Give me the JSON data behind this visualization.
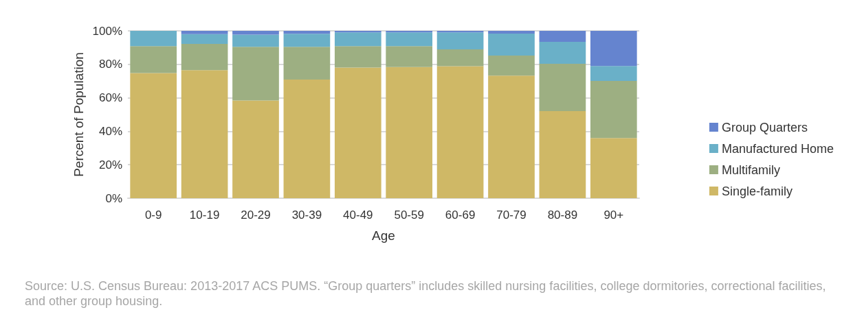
{
  "chart_data": {
    "type": "bar",
    "stacked": true,
    "xlabel": "Age",
    "ylabel": "Percent of Population",
    "categories": [
      "0-9",
      "10-19",
      "20-29",
      "30-39",
      "40-49",
      "50-59",
      "60-69",
      "70-79",
      "80-89",
      "90+"
    ],
    "series": [
      {
        "name": "Single-family",
        "color": "#cfb866",
        "values": [
          74.8,
          76.5,
          58.4,
          70.9,
          78.1,
          78.4,
          78.9,
          73.3,
          52.1,
          36.0
        ]
      },
      {
        "name": "Multifamily",
        "color": "#9daf82",
        "values": [
          16.1,
          15.7,
          32.1,
          19.6,
          12.8,
          12.5,
          10.0,
          11.9,
          28.2,
          34.1
        ]
      },
      {
        "name": "Manufactured Home",
        "color": "#6ab0c8",
        "values": [
          9.1,
          5.9,
          7.2,
          7.8,
          8.2,
          8.2,
          10.2,
          13.2,
          13.1,
          8.9
        ]
      },
      {
        "name": "Group Quarters",
        "color": "#6584cf",
        "values": [
          0,
          1.9,
          2.3,
          1.7,
          0.9,
          0.9,
          0.9,
          1.6,
          6.6,
          21.0
        ]
      }
    ],
    "ylim": [
      0,
      100
    ],
    "yticks": [
      {
        "value": 0,
        "label": "0%"
      },
      {
        "value": 20,
        "label": "20%"
      },
      {
        "value": 40,
        "label": "40%"
      },
      {
        "value": 60,
        "label": "60%"
      },
      {
        "value": 80,
        "label": "80%"
      },
      {
        "value": 100,
        "label": "100%"
      }
    ],
    "grid": "y",
    "legend": "right",
    "annotations": [
      "Source: U.S. Census Bureau: 2013-2017 ACS PUMS. “Group quarters” includes skilled nursing facilities, college dormitories, correctional facilities, and other group housing."
    ]
  }
}
